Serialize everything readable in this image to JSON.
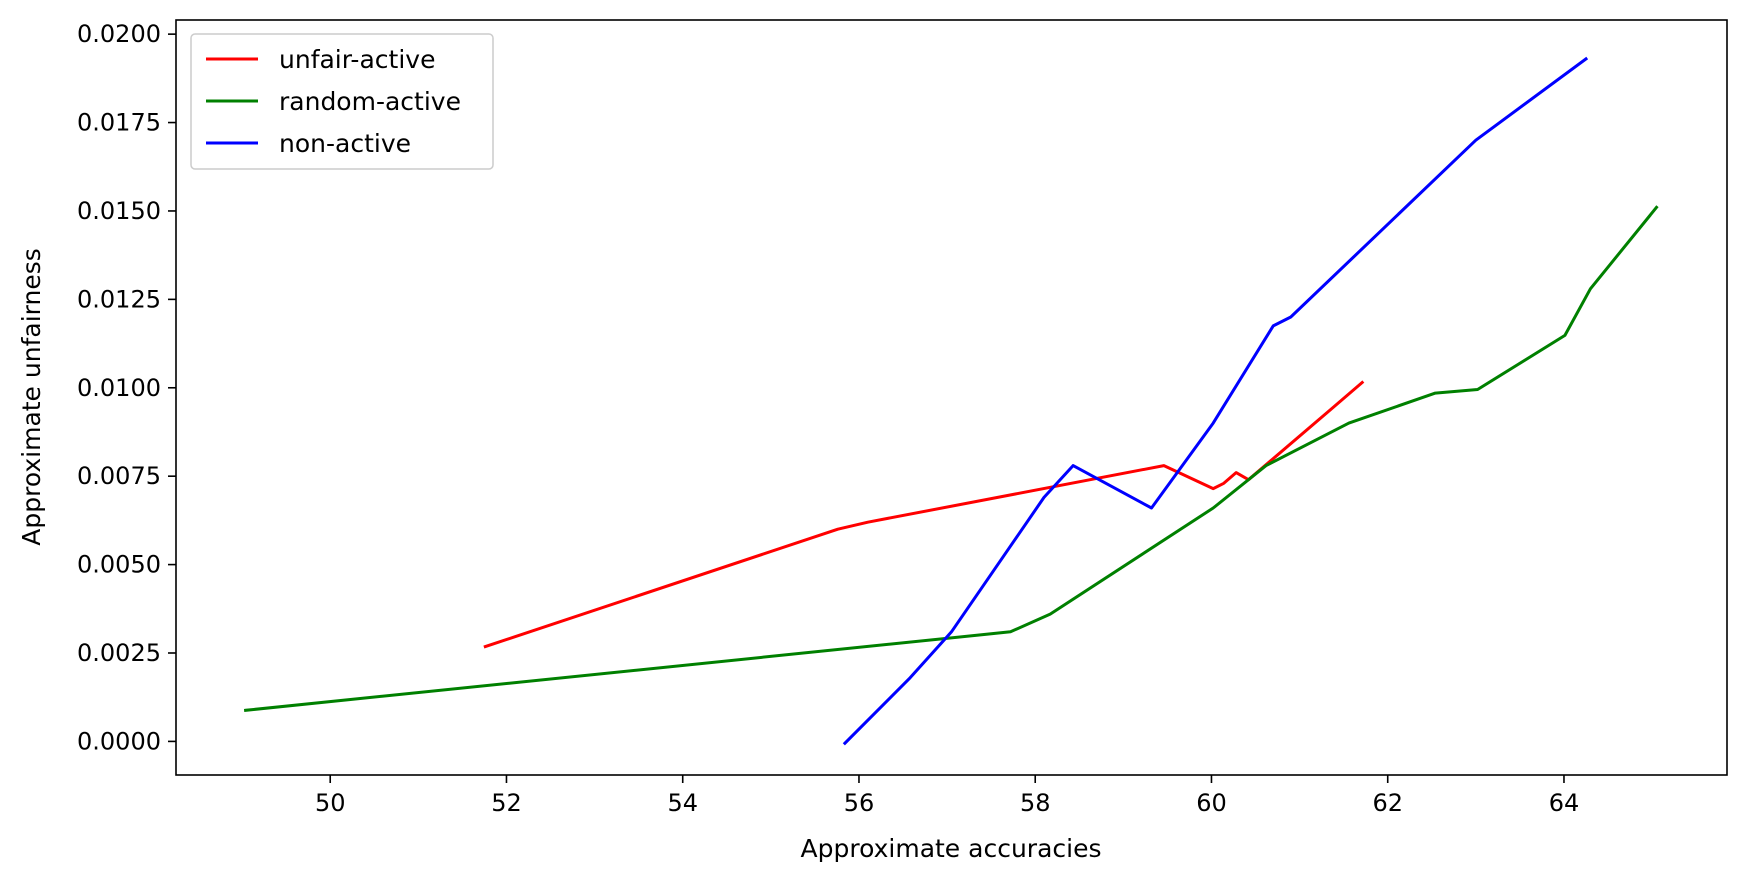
{
  "chart_data": {
    "type": "line",
    "title": "",
    "xlabel": "Approximate accuracies",
    "ylabel": "Approximate unfairness",
    "xlim": [
      48.25,
      65.85
    ],
    "ylim": [
      -0.00095,
      0.0204
    ],
    "xticks": [
      50,
      52,
      54,
      56,
      58,
      60,
      62,
      64
    ],
    "xtick_labels": [
      "50",
      "52",
      "54",
      "56",
      "58",
      "60",
      "62",
      "64"
    ],
    "yticks": [
      0.0,
      0.0025,
      0.005,
      0.0075,
      0.01,
      0.0125,
      0.015,
      0.0175,
      0.02
    ],
    "ytick_labels": [
      "0.0000",
      "0.0025",
      "0.0050",
      "0.0075",
      "0.0100",
      "0.0125",
      "0.0150",
      "0.0175",
      "0.0200"
    ],
    "grid": false,
    "legend_position": "top-left",
    "series": [
      {
        "name": "unfair-active",
        "color": "#ff0000",
        "x": [
          51.76,
          55.76,
          56.1,
          59.46,
          60.02,
          60.14,
          60.28,
          60.42,
          61.36,
          61.71
        ],
        "y": [
          0.00268,
          0.006,
          0.0062,
          0.0078,
          0.00715,
          0.0073,
          0.0076,
          0.0074,
          0.0094,
          0.01015
        ]
      },
      {
        "name": "random-active",
        "color": "#008000",
        "x": [
          49.04,
          57.72,
          58.17,
          60.02,
          60.62,
          61.56,
          62.54,
          63.02,
          64.01,
          64.3,
          65.05
        ],
        "y": [
          0.00088,
          0.0031,
          0.0036,
          0.0066,
          0.0078,
          0.009,
          0.00985,
          0.00995,
          0.01148,
          0.0128,
          0.0151
        ]
      },
      {
        "name": "non-active",
        "color": "#0000ff",
        "x": [
          55.84,
          56.58,
          57.05,
          58.1,
          58.43,
          59.32,
          60.02,
          60.7,
          60.9,
          63.0,
          64.25
        ],
        "y": [
          -5e-05,
          0.0018,
          0.0031,
          0.0069,
          0.0078,
          0.0066,
          0.009,
          0.01175,
          0.012,
          0.017,
          0.0193
        ]
      }
    ]
  }
}
